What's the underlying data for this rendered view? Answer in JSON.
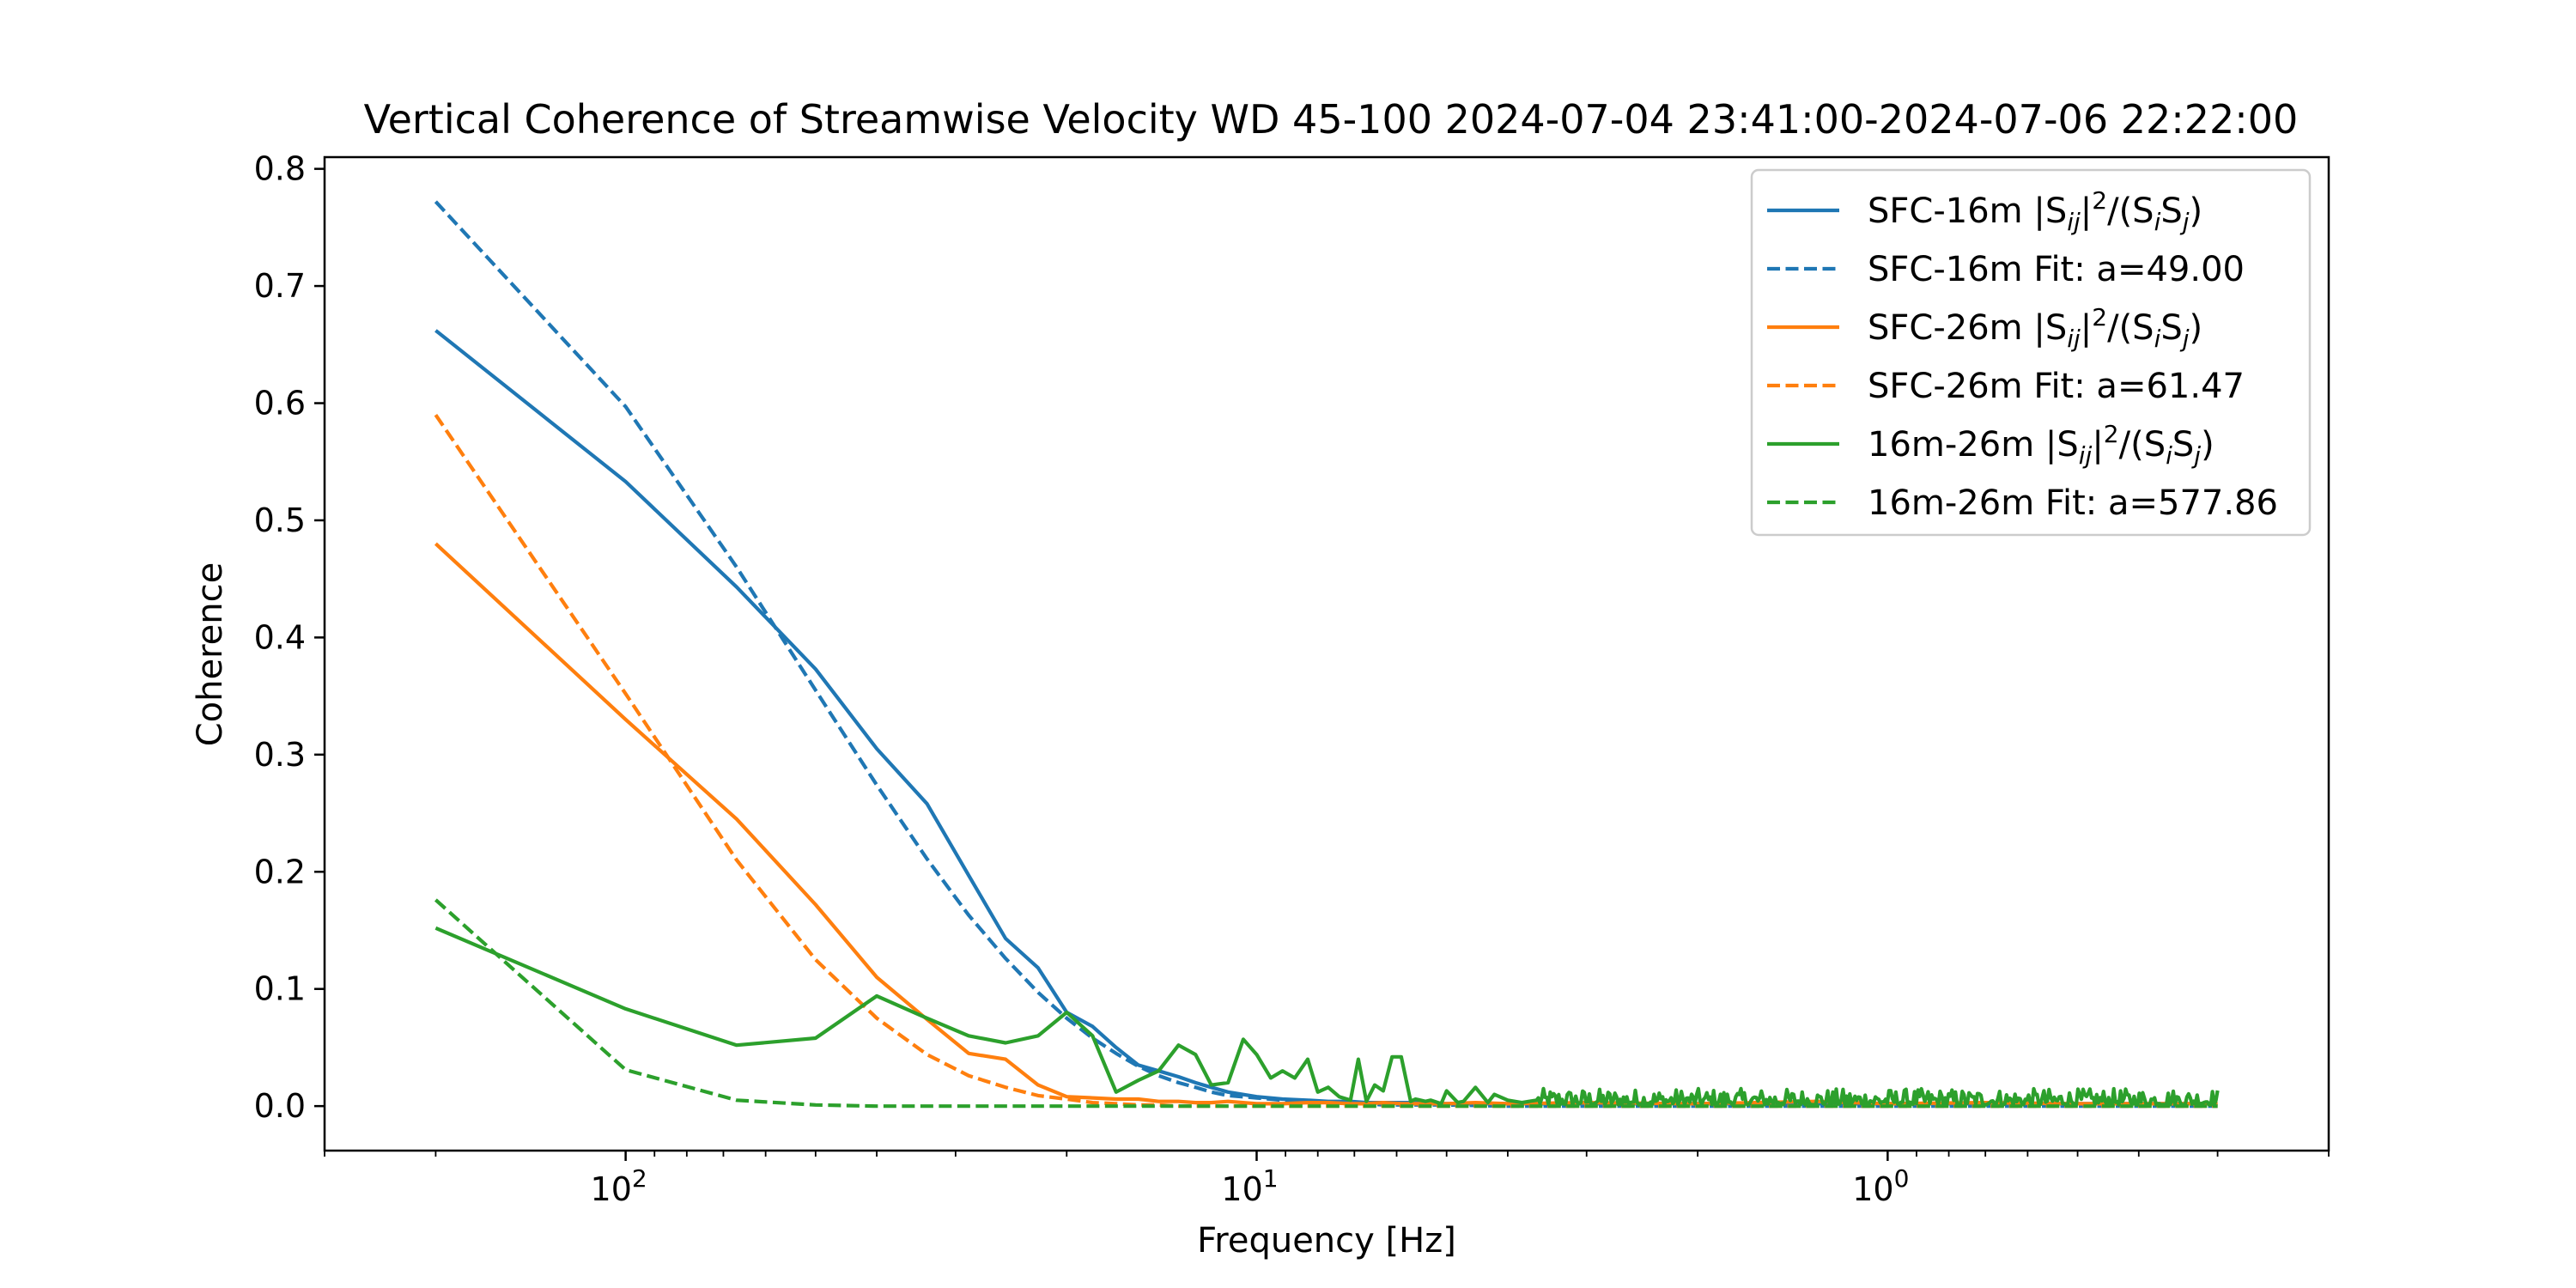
{
  "chart_data": {
    "type": "line",
    "title": "Vertical Coherence of Streamwise Velocity WD 45-100 2024-07-04 23:41:00-2024-07-06 22:22:00",
    "xlabel": "Frequency [Hz]",
    "ylabel": "Coherence",
    "x_scale": "log",
    "x_axis_reversed": true,
    "xlim": [
      300,
      0.2
    ],
    "ylim": [
      -0.038,
      0.81
    ],
    "x_major_ticks": [
      {
        "value": 100,
        "base": "10",
        "exp": "2"
      },
      {
        "value": 10,
        "base": "10",
        "exp": "1"
      },
      {
        "value": 1,
        "base": "10",
        "exp": "0"
      }
    ],
    "y_ticks": [
      {
        "value": 0.0,
        "label": "0.0"
      },
      {
        "value": 0.1,
        "label": "0.1"
      },
      {
        "value": 0.2,
        "label": "0.2"
      },
      {
        "value": 0.3,
        "label": "0.3"
      },
      {
        "value": 0.4,
        "label": "0.4"
      },
      {
        "value": 0.5,
        "label": "0.5"
      },
      {
        "value": 0.6,
        "label": "0.6"
      },
      {
        "value": 0.7,
        "label": "0.7"
      },
      {
        "value": 0.8,
        "label": "0.8"
      }
    ],
    "grid": false,
    "legend_position": "upper right",
    "series": [
      {
        "name": "SFC-16m |Sij|^2/(SiSj)",
        "legend": {
          "pre": "SFC-16m |S",
          "sub1": "ij",
          "mid": "|",
          "sup": "2",
          "mid2": "/(S",
          "sub2": "i",
          "mid3": "S",
          "sub3": "j",
          "post": ")"
        },
        "color": "#1f77b4",
        "style": "solid",
        "x": [
          200,
          100,
          66.7,
          50,
          40,
          33.3,
          28.6,
          25,
          22.2,
          20,
          18.2,
          16.7,
          15.4,
          14.3,
          13.3,
          12.5,
          11.8,
          11.1,
          10,
          9.1,
          8.3,
          7.7,
          7.1,
          6.7,
          6.3,
          5.9,
          5.6,
          5,
          4.5,
          4,
          3,
          2,
          1,
          0.5,
          0.3
        ],
        "y": [
          0.662,
          0.533,
          0.443,
          0.373,
          0.305,
          0.258,
          0.197,
          0.143,
          0.118,
          0.08,
          0.068,
          0.05,
          0.035,
          0.03,
          0.025,
          0.02,
          0.016,
          0.012,
          0.008,
          0.006,
          0.005,
          0.004,
          0.004,
          0.003,
          0.003,
          0.003,
          0.003,
          0.002,
          0.002,
          0.002,
          0.002,
          0.002,
          0.002,
          0.002,
          0.002
        ]
      },
      {
        "name": "SFC-16m Fit: a=49.00",
        "legend": {
          "pre": "SFC-16m Fit: a=49.00"
        },
        "color": "#1f77b4",
        "style": "dashed",
        "x": [
          200,
          100,
          66.7,
          50,
          40,
          33.3,
          28.6,
          25,
          22.2,
          20,
          18.2,
          16.7,
          15.4,
          14.3,
          13.3,
          12.5,
          11.8,
          11.1,
          10,
          9.1,
          8.3,
          7.7,
          7.1,
          6.7,
          6.3,
          5.9,
          5.6,
          5,
          4,
          3,
          2,
          1,
          0.5,
          0.3
        ],
        "y": [
          0.772,
          0.597,
          0.46,
          0.355,
          0.274,
          0.211,
          0.163,
          0.126,
          0.097,
          0.075,
          0.058,
          0.045,
          0.034,
          0.026,
          0.02,
          0.016,
          0.012,
          0.009,
          0.007,
          0.005,
          0.004,
          0.003,
          0.002,
          0.002,
          0.001,
          0.001,
          0.001,
          0.001,
          0.0,
          0.0,
          0.0,
          0.0,
          0.0,
          0.0
        ]
      },
      {
        "name": "SFC-26m |Sij|^2/(SiSj)",
        "legend": {
          "pre": "SFC-26m |S",
          "sub1": "ij",
          "mid": "|",
          "sup": "2",
          "mid2": "/(S",
          "sub2": "i",
          "mid3": "S",
          "sub3": "j",
          "post": ")"
        },
        "color": "#ff7f0e",
        "style": "solid",
        "x": [
          200,
          100,
          66.7,
          50,
          40,
          33.3,
          28.6,
          25,
          22.2,
          20,
          18.2,
          16.7,
          15.4,
          14.3,
          13.3,
          12.5,
          11.8,
          11.1,
          10,
          9.1,
          8.3,
          7.7,
          7.1,
          6.7,
          6.3,
          5.9,
          5.6,
          5,
          4.5,
          4,
          3,
          2,
          1.3,
          1,
          0.7,
          0.5,
          0.3
        ],
        "y": [
          0.48,
          0.33,
          0.245,
          0.172,
          0.11,
          0.074,
          0.045,
          0.04,
          0.018,
          0.008,
          0.007,
          0.006,
          0.006,
          0.004,
          0.004,
          0.003,
          0.003,
          0.004,
          0.002,
          0.002,
          0.003,
          0.003,
          0.002,
          0.002,
          0.003,
          0.002,
          0.002,
          0.002,
          0.003,
          0.002,
          0.003,
          0.002,
          0.004,
          0.002,
          0.003,
          0.002,
          0.002
        ]
      },
      {
        "name": "SFC-26m Fit: a=61.47",
        "legend": {
          "pre": "SFC-26m Fit: a=61.47"
        },
        "color": "#ff7f0e",
        "style": "dashed",
        "x": [
          200,
          100,
          66.7,
          50,
          40,
          33.3,
          28.6,
          25,
          22.2,
          20,
          18.2,
          16.7,
          15.4,
          14.3,
          13.3,
          12.5,
          11.1,
          10,
          8.3,
          7.1,
          5,
          3,
          1,
          0.3
        ],
        "y": [
          0.59,
          0.352,
          0.21,
          0.125,
          0.075,
          0.044,
          0.026,
          0.016,
          0.009,
          0.006,
          0.003,
          0.002,
          0.001,
          0.001,
          0.0,
          0.0,
          0.0,
          0.0,
          0.0,
          0.0,
          0.0,
          0.0,
          0.0,
          0.0
        ]
      },
      {
        "name": "16m-26m |Sij|^2/(SiSj)",
        "legend": {
          "pre": "16m-26m |S",
          "sub1": "ij",
          "mid": "|",
          "sup": "2",
          "mid2": "/(S",
          "sub2": "i",
          "mid3": "S",
          "sub3": "j",
          "post": ")"
        },
        "color": "#2ca02c",
        "style": "solid",
        "noisy_tail": {
          "from": 3.6,
          "to": 0.3,
          "points": 400,
          "min": 0.001,
          "max": 0.015
        },
        "x": [
          200,
          100,
          66.7,
          50,
          40,
          33.3,
          28.6,
          25,
          22.2,
          20,
          18.2,
          16.7,
          15.4,
          14.3,
          13.3,
          12.5,
          11.8,
          11.1,
          10.5,
          10,
          9.5,
          9.1,
          8.7,
          8.3,
          8,
          7.7,
          7.4,
          7.1,
          6.9,
          6.7,
          6.5,
          6.3,
          6.1,
          5.9,
          5.7,
          5.6,
          5.4,
          5.3,
          5.1,
          5,
          4.8,
          4.7,
          4.5,
          4.3,
          4.2,
          4.0,
          3.8,
          3.6
        ],
        "y": [
          0.152,
          0.083,
          0.052,
          0.058,
          0.094,
          0.075,
          0.06,
          0.054,
          0.06,
          0.08,
          0.06,
          0.012,
          0.022,
          0.03,
          0.052,
          0.044,
          0.018,
          0.02,
          0.057,
          0.044,
          0.024,
          0.03,
          0.024,
          0.04,
          0.012,
          0.016,
          0.008,
          0.005,
          0.04,
          0.004,
          0.018,
          0.013,
          0.042,
          0.042,
          0.004,
          0.006,
          0.004,
          0.005,
          0.002,
          0.013,
          0.003,
          0.004,
          0.016,
          0.003,
          0.01,
          0.005,
          0.003,
          0.005
        ]
      },
      {
        "name": "16m-26m Fit: a=577.86",
        "legend": {
          "pre": "16m-26m Fit: a=577.86"
        },
        "color": "#2ca02c",
        "style": "dashed",
        "x": [
          200,
          100,
          66.7,
          50,
          40,
          33.3,
          28.6,
          25,
          20,
          10,
          5,
          1,
          0.3
        ],
        "y": [
          0.176,
          0.031,
          0.005,
          0.001,
          0.0,
          0.0,
          0.0,
          0.0,
          0.0,
          0.0,
          0.0,
          0.0,
          0.0
        ]
      }
    ]
  }
}
